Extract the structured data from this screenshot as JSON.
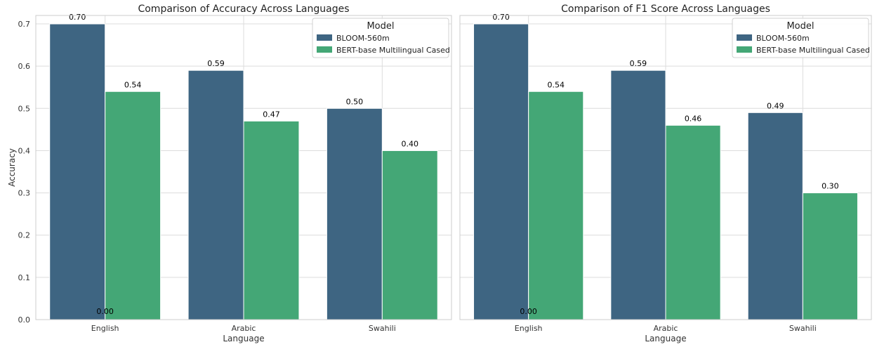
{
  "chart_data": [
    {
      "type": "bar",
      "title": "Comparison of Accuracy Across Languages",
      "xlabel": "Language",
      "ylabel": "Accuracy",
      "categories": [
        "English",
        "Arabic",
        "Swahili"
      ],
      "series": [
        {
          "name": "BLOOM-560m",
          "values": [
            0.7,
            0.59,
            0.5
          ],
          "value_labels": [
            "0.70",
            "0.59",
            "0.50"
          ]
        },
        {
          "name": "BERT-base Multilingual Cased",
          "values": [
            0.54,
            0.47,
            0.4
          ],
          "value_labels": [
            "0.54",
            "0.47",
            "0.40"
          ]
        }
      ],
      "extra_label": "0.00",
      "ylim": [
        0,
        0.72
      ],
      "yticks": [
        "0.0",
        "0.1",
        "0.2",
        "0.3",
        "0.4",
        "0.5",
        "0.6",
        "0.7"
      ],
      "grid": true,
      "legend": {
        "title": "Model",
        "placement": "top-right"
      }
    },
    {
      "type": "bar",
      "title": "Comparison of F1 Score Across Languages",
      "xlabel": "Language",
      "ylabel": "",
      "categories": [
        "English",
        "Arabic",
        "Swahili"
      ],
      "series": [
        {
          "name": "BLOOM-560m",
          "values": [
            0.7,
            0.59,
            0.49
          ],
          "value_labels": [
            "0.70",
            "0.59",
            "0.49"
          ]
        },
        {
          "name": "BERT-base Multilingual Cased",
          "values": [
            0.54,
            0.46,
            0.3
          ],
          "value_labels": [
            "0.54",
            "0.46",
            "0.30"
          ]
        }
      ],
      "extra_label": "0.00",
      "ylim": [
        0,
        0.72
      ],
      "yticks": [],
      "grid": true,
      "legend": {
        "title": "Model",
        "placement": "top-right"
      }
    }
  ],
  "colors": {
    "series": [
      "#3e6582",
      "#44a776"
    ],
    "grid": "#dcdcdc",
    "frame": "#cccccc"
  }
}
